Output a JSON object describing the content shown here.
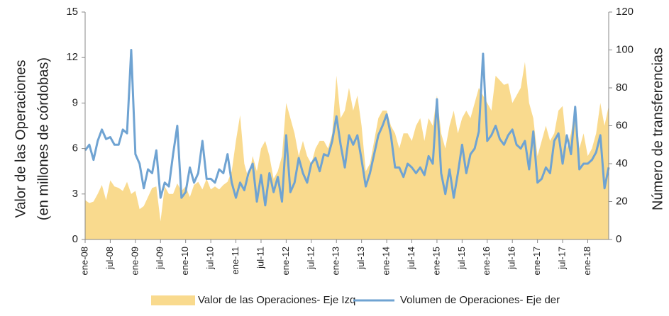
{
  "chart_data": {
    "type": "area-line",
    "ylabel": [
      "Valor de las Operaciones",
      "(en millones de córdobas)"
    ],
    "y2label": "Número de transferencias",
    "categories": [
      "ene-08",
      null,
      null,
      null,
      null,
      null,
      "jul-08",
      null,
      null,
      null,
      null,
      null,
      "ene-09",
      null,
      null,
      null,
      null,
      null,
      "jul-09",
      null,
      null,
      null,
      null,
      null,
      "ene-10",
      null,
      null,
      null,
      null,
      null,
      "jul-10",
      null,
      null,
      null,
      null,
      null,
      "ene-11",
      null,
      null,
      null,
      null,
      null,
      "jul-11",
      null,
      null,
      null,
      null,
      null,
      "ene-12",
      null,
      null,
      null,
      null,
      null,
      "jul-12",
      null,
      null,
      null,
      null,
      null,
      "ene-13",
      null,
      null,
      null,
      null,
      null,
      "jul-13",
      null,
      null,
      null,
      null,
      null,
      "ene-14",
      null,
      null,
      null,
      null,
      null,
      "jul-14",
      null,
      null,
      null,
      null,
      null,
      "ene-15",
      null,
      null,
      null,
      null,
      null,
      "jul-15",
      null,
      null,
      null,
      null,
      null,
      "ene-16",
      null,
      null,
      null,
      null,
      null,
      "jul-16",
      null,
      null,
      null,
      null,
      null,
      "ene-17",
      null,
      null,
      null,
      null,
      null,
      "jul-17",
      null,
      null,
      null,
      null,
      null,
      "ene-18",
      null,
      null,
      null,
      null,
      null
    ],
    "series": [
      {
        "name": "Valor de las Operaciones- Eje Izq",
        "color": "#f9da8e",
        "kind": "area",
        "values": [
          2.6,
          2.4,
          2.5,
          3.0,
          3.6,
          2.6,
          3.9,
          3.5,
          3.4,
          3.2,
          3.8,
          3.0,
          3.2,
          2.0,
          2.2,
          2.8,
          3.4,
          3.5,
          1.2,
          3.5,
          3.0,
          3.0,
          3.7,
          3.2,
          3.5,
          2.8,
          3.6,
          3.8,
          3.3,
          4.0,
          3.3,
          3.5,
          3.3,
          3.6,
          3.8,
          4.5,
          6.5,
          8.2,
          5.0,
          4.0,
          5.5,
          4.5,
          6.0,
          6.5,
          5.5,
          4.0,
          4.5,
          5.5,
          9.0,
          8.0,
          7.0,
          5.5,
          6.5,
          5.5,
          5.0,
          6.0,
          6.5,
          6.5,
          6.0,
          7.0,
          10.8,
          8.0,
          8.5,
          10.0,
          8.5,
          9.5,
          7.5,
          4.5,
          5.0,
          6.5,
          8.0,
          8.5,
          8.5,
          7.5,
          7.0,
          6.0,
          7.0,
          7.0,
          6.5,
          7.5,
          8.0,
          6.5,
          8.0,
          7.5,
          9.5,
          7.0,
          6.0,
          7.5,
          8.5,
          7.0,
          8.0,
          8.5,
          8.0,
          9.0,
          10.0,
          9.5,
          9.0,
          8.5,
          10.8,
          10.5,
          10.2,
          10.3,
          9.0,
          9.5,
          10.0,
          11.7,
          9.0,
          8.0,
          5.5,
          6.5,
          7.5,
          6.5,
          7.0,
          8.5,
          8.8,
          6.0,
          7.0,
          8.8,
          6.0,
          7.0,
          5.5,
          6.0,
          7.0,
          9.0,
          7.5,
          8.8
        ]
      },
      {
        "name": "Volumen de Operaciones- Eje der",
        "color": "#6fa3d2",
        "kind": "line",
        "axis": "y2",
        "values": [
          47,
          50,
          42,
          52,
          58,
          53,
          54,
          50,
          50,
          58,
          56,
          100,
          45,
          40,
          27,
          37,
          35,
          47,
          22,
          30,
          28,
          45,
          60,
          22,
          25,
          38,
          30,
          35,
          52,
          32,
          32,
          30,
          37,
          35,
          45,
          30,
          22,
          30,
          26,
          35,
          40,
          20,
          34,
          18,
          35,
          25,
          33,
          20,
          55,
          25,
          30,
          43,
          35,
          30,
          40,
          43,
          36,
          45,
          44,
          52,
          65,
          50,
          38,
          55,
          50,
          55,
          42,
          28,
          35,
          45,
          55,
          60,
          66,
          55,
          38,
          38,
          33,
          40,
          38,
          35,
          38,
          34,
          44,
          40,
          74,
          35,
          24,
          37,
          22,
          35,
          50,
          35,
          45,
          48,
          57,
          98,
          52,
          55,
          60,
          53,
          50,
          55,
          58,
          50,
          48,
          52,
          37,
          57,
          30,
          32,
          38,
          35,
          52,
          56,
          40,
          55,
          45,
          70,
          37,
          40,
          40,
          42,
          46,
          55,
          27,
          38
        ]
      }
    ],
    "ylim": [
      0,
      15
    ],
    "yticks": [
      0,
      3,
      6,
      9,
      12,
      15
    ],
    "y2lim": [
      0,
      120
    ],
    "y2ticks": [
      0,
      20,
      40,
      60,
      80,
      100,
      120
    ]
  }
}
